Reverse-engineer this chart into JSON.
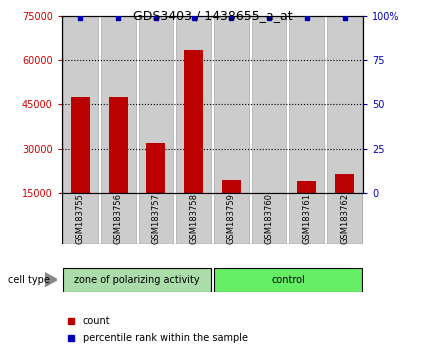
{
  "title": "GDS3403 / 1438655_a_at",
  "samples": [
    "GSM183755",
    "GSM183756",
    "GSM183757",
    "GSM183758",
    "GSM183759",
    "GSM183760",
    "GSM183761",
    "GSM183762"
  ],
  "counts": [
    47500,
    47500,
    32000,
    63500,
    19500,
    15000,
    19000,
    21500
  ],
  "percentile_ranks": [
    99,
    99,
    99,
    99,
    99,
    99,
    99,
    99
  ],
  "ylim_left": [
    15000,
    75000
  ],
  "yticks_left": [
    15000,
    30000,
    45000,
    60000,
    75000
  ],
  "ylim_right": [
    0,
    100
  ],
  "yticks_right": [
    0,
    25,
    50,
    75,
    100
  ],
  "bar_color": "#BB0000",
  "percentile_color": "#0000BB",
  "bar_bg_color": "#CCCCCC",
  "bar_bg_edgecolor": "#AAAAAA",
  "left_tick_color": "#CC0000",
  "right_tick_color": "#0000BB",
  "group1_label": "zone of polarizing activity",
  "group2_label": "control",
  "group1_bg": "#AADDAA",
  "group2_bg": "#66EE66",
  "group_border_color": "#000000",
  "cell_type_label": "cell type",
  "legend_count_color": "#BB0000",
  "legend_pct_color": "#0000BB",
  "bar_width": 0.5,
  "bg_color": "#FFFFFF",
  "grid_color": "#000000",
  "grid_style": ":",
  "grid_linewidth": 0.8,
  "grid_yticks": [
    30000,
    45000,
    60000
  ],
  "spine_linewidth": 0.8,
  "tick_fontsize": 7,
  "label_fontsize": 6,
  "title_fontsize": 9,
  "legend_fontsize": 7,
  "group_fontsize": 7,
  "cell_type_fontsize": 7
}
